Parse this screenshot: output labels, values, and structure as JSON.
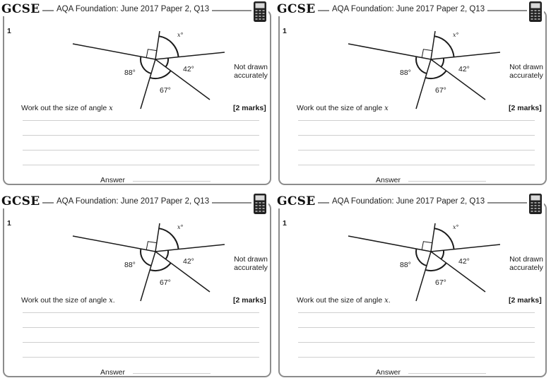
{
  "worksheet": {
    "cards": [
      {
        "brand": "GCSE",
        "source": "AQA Foundation: June 2017 Paper 2, Q13",
        "calculator_icon": "calculator-icon",
        "question_number": "1",
        "note_line1": "Not drawn",
        "note_line2": "accurately",
        "angle_labels": {
          "x": "x°",
          "left": "88°",
          "right": "42°",
          "bottom": "67°"
        },
        "question_text": "Work out the size of angle ",
        "question_var": "x",
        "question_end": "",
        "marks": "[2 marks]",
        "answer_label": "Answer"
      },
      {
        "brand": "GCSE",
        "source": "AQA Foundation: June 2017 Paper 2, Q13",
        "calculator_icon": "calculator-icon",
        "question_number": "1",
        "note_line1": "Not drawn",
        "note_line2": "accurately",
        "angle_labels": {
          "x": "x°",
          "left": "88°",
          "right": "42°",
          "bottom": "67°"
        },
        "question_text": "Work out the size of angle ",
        "question_var": "x",
        "question_end": "",
        "marks": "[2 marks]",
        "answer_label": "Answer"
      },
      {
        "brand": "GCSE",
        "source": "AQA Foundation: June 2017 Paper 2, Q13",
        "calculator_icon": "calculator-icon",
        "question_number": "1",
        "note_line1": "Not drawn",
        "note_line2": "accurately",
        "angle_labels": {
          "x": "x°",
          "left": "88°",
          "right": "42°",
          "bottom": "67°"
        },
        "question_text": "Work out the size of angle ",
        "question_var": "x",
        "question_end": ".",
        "marks": "[2 marks]",
        "answer_label": "Answer"
      },
      {
        "brand": "GCSE",
        "source": "AQA Foundation: June 2017 Paper 2, Q13",
        "calculator_icon": "calculator-icon",
        "question_number": "1",
        "note_line1": "Not drawn",
        "note_line2": "accurately",
        "angle_labels": {
          "x": "x°",
          "left": "88°",
          "right": "42°",
          "bottom": "67°"
        },
        "question_text": "Work out the size of angle ",
        "question_var": "x",
        "question_end": ".",
        "marks": "[2 marks]",
        "answer_label": "Answer"
      }
    ]
  }
}
